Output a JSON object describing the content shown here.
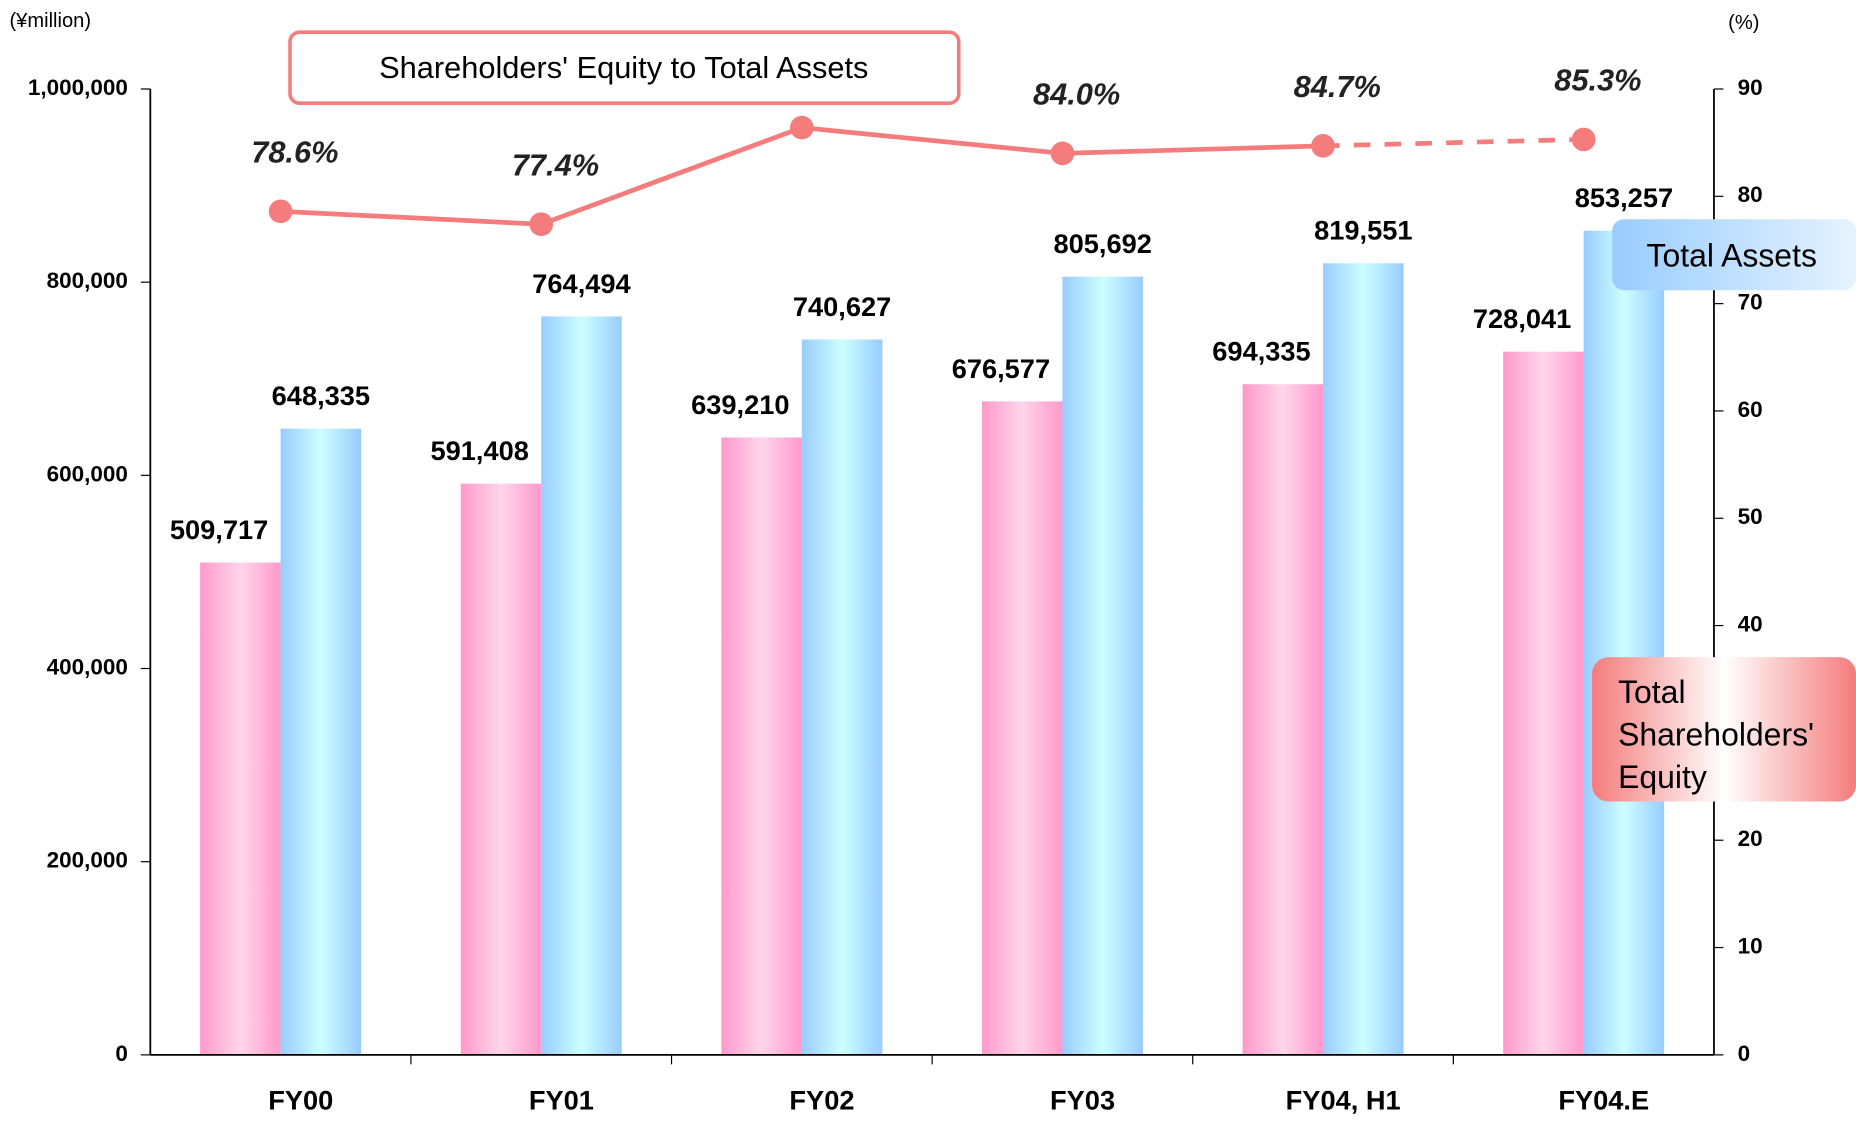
{
  "chart_data": {
    "type": "bar_line",
    "unit_left": "(¥million)",
    "unit_right": "(%)",
    "categories": [
      "FY00",
      "FY01",
      "FY02",
      "FY03",
      "FY04, H1",
      "FY04.E"
    ],
    "series": [
      {
        "name": "Total Shareholders' Equity",
        "color": "#ff99cc",
        "values": [
          509717,
          591408,
          639210,
          676577,
          694335,
          728041
        ],
        "value_labels": [
          "509,717",
          "591,408",
          "639,210",
          "676,577",
          "694,335",
          "728,041"
        ]
      },
      {
        "name": "Total Assets",
        "color": "#99ccff",
        "values": [
          648335,
          764494,
          740627,
          805692,
          819551,
          853257
        ],
        "value_labels": [
          "648,335",
          "764,494",
          "740,627",
          "805,692",
          "819,551",
          "853,257"
        ]
      },
      {
        "name": "Shareholders' Equity to Total Assets",
        "type": "line",
        "axis": "y2",
        "color": "#f47c7c",
        "dashed_from": 4,
        "values": [
          78.6,
          77.4,
          86.4,
          84.0,
          84.7,
          85.3
        ],
        "value_labels": [
          "78.6%",
          "77.4%",
          null,
          "84.0%",
          "84.7%",
          "85.3%"
        ]
      }
    ],
    "ylim": [
      0,
      1000000
    ],
    "yticks": [
      0,
      {
        "value": 200000,
        "label": "200,000"
      },
      {
        "value": 400000,
        "label": "400,000"
      },
      {
        "value": 600000,
        "label": "600,000"
      },
      {
        "value": 800000,
        "label": "800,000"
      },
      {
        "value": 1000000,
        "label": "1,000,000"
      }
    ],
    "y2lim": [
      0,
      90
    ],
    "y2ticks": [
      0,
      10,
      20,
      30,
      40,
      50,
      60,
      70,
      80,
      90
    ]
  }
}
